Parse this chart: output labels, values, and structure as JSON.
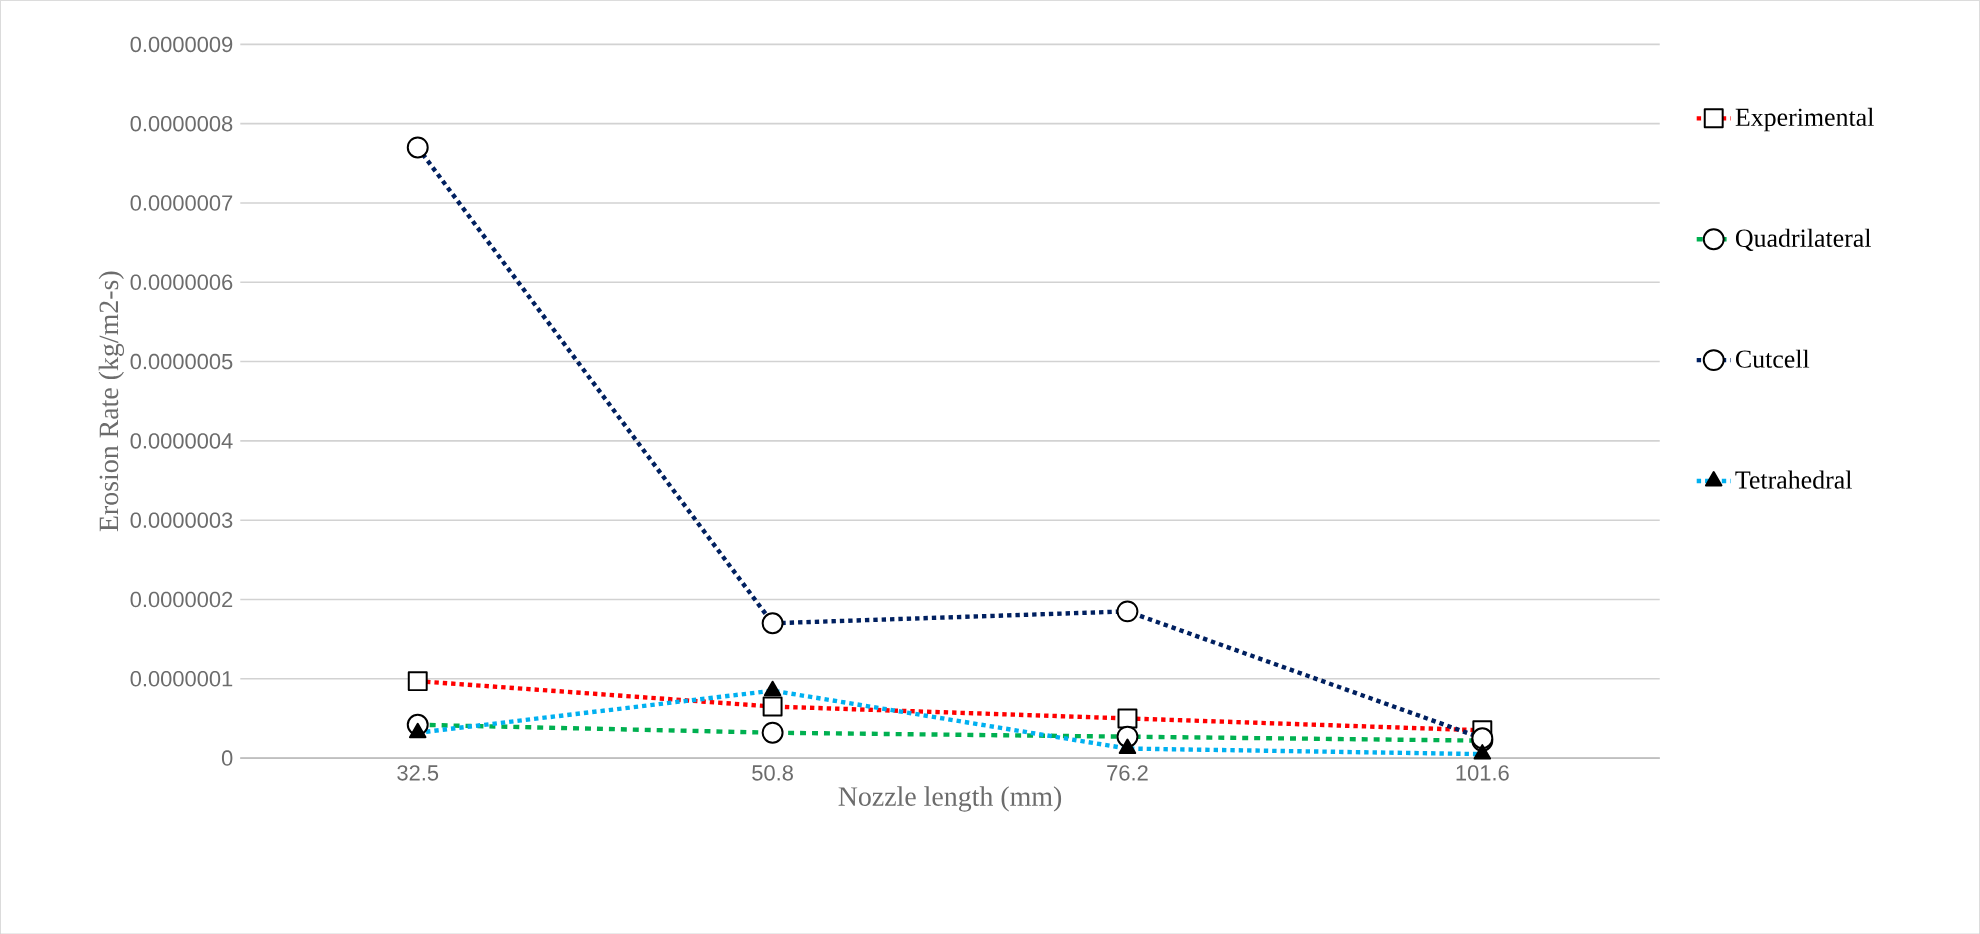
{
  "chart_data": {
    "type": "line",
    "xlabel": "Nozzle length (mm)",
    "ylabel": "Erosion Rate (kg/m2-s)",
    "categories": [
      "32.5",
      "50.8",
      "76.2",
      "101.6"
    ],
    "ylim": [
      0,
      9e-07
    ],
    "yticks": [
      0,
      {
        "value": 1e-07,
        "label": "0.0000001"
      },
      {
        "value": 2e-07,
        "label": "0.0000002"
      },
      {
        "value": 3e-07,
        "label": "0.0000003"
      },
      {
        "value": 4e-07,
        "label": "0.0000004"
      },
      {
        "value": 5e-07,
        "label": "0.0000005"
      },
      {
        "value": 6e-07,
        "label": "0.0000006"
      },
      {
        "value": 7e-07,
        "label": "0.0000007"
      },
      {
        "value": 8e-07,
        "label": "0.0000008"
      },
      {
        "value": 9e-07,
        "label": "0.0000009"
      }
    ],
    "grid": "y",
    "legend": "right",
    "line_style": "dotted",
    "series": [
      {
        "name": "Experimental",
        "color": "#ff0000",
        "marker": "square",
        "values": [
          9.7e-08,
          6.5e-08,
          5e-08,
          3.5e-08
        ]
      },
      {
        "name": "Quadrilateral",
        "color": "#00b050",
        "marker": "circle",
        "line_style": "dashed",
        "values": [
          4.2e-08,
          3.2e-08,
          2.7e-08,
          2.2e-08
        ]
      },
      {
        "name": "Cutcell",
        "color": "#002060",
        "marker": "circle",
        "values": [
          7.7e-07,
          1.7e-07,
          1.85e-07,
          2.5e-08
        ]
      },
      {
        "name": "Tetrahedral",
        "color": "#00b0f0",
        "marker": "triangle",
        "values": [
          3.2e-08,
          8.5e-08,
          1.2e-08,
          5e-09
        ]
      }
    ]
  }
}
